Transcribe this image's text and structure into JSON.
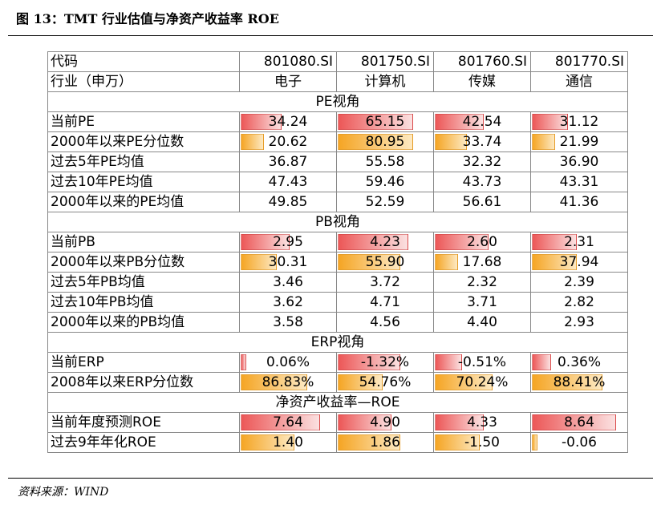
{
  "title": "图 13：TMT 行业估值与净资产收益率 ROE",
  "source": "资料来源：WIND",
  "table": {
    "code_label": "代码",
    "industry_label": "行业（申万）",
    "codes": [
      "801080.SI",
      "801750.SI",
      "801760.SI",
      "801770.SI"
    ],
    "industries": [
      "电子",
      "计算机",
      "传媒",
      "通信"
    ],
    "sections": [
      {
        "title": "PE视角",
        "rows": [
          {
            "label": "当前PE",
            "values": [
              "34.24",
              "65.15",
              "42.54",
              "31.12"
            ],
            "bar": "red",
            "fill": [
              0.45,
              0.85,
              0.55,
              0.4
            ]
          },
          {
            "label": "2000年以来PE分位数",
            "values": [
              "20.62",
              "80.95",
              "33.74",
              "21.99"
            ],
            "bar": "orange",
            "fill": [
              0.25,
              0.85,
              0.35,
              0.25
            ]
          },
          {
            "label": "过去5年PE均值",
            "values": [
              "36.87",
              "55.58",
              "32.32",
              "36.90"
            ]
          },
          {
            "label": "过去10年PE均值",
            "values": [
              "47.43",
              "59.46",
              "43.73",
              "43.31"
            ]
          },
          {
            "label": "2000年以来的PE均值",
            "values": [
              "49.85",
              "52.59",
              "56.61",
              "41.36"
            ]
          }
        ]
      },
      {
        "title": "PB视角",
        "rows": [
          {
            "label": "当前PB",
            "values": [
              "2.95",
              "4.23",
              "2.60",
              "2.31"
            ],
            "bar": "red",
            "fill": [
              0.55,
              0.8,
              0.6,
              0.5
            ]
          },
          {
            "label": "2000年以来PB分位数",
            "values": [
              "30.31",
              "55.90",
              "17.68",
              "37.94"
            ],
            "bar": "orange",
            "fill": [
              0.4,
              0.7,
              0.25,
              0.5
            ]
          },
          {
            "label": "过去5年PB均值",
            "values": [
              "3.46",
              "3.72",
              "2.32",
              "2.39"
            ]
          },
          {
            "label": "过去10年PB均值",
            "values": [
              "3.62",
              "4.71",
              "3.71",
              "2.82"
            ]
          },
          {
            "label": "2000年以来的PB均值",
            "values": [
              "3.58",
              "4.56",
              "4.40",
              "2.93"
            ]
          }
        ]
      },
      {
        "title": "ERP视角",
        "rows": [
          {
            "label": "当前ERP",
            "values": [
              "0.06%",
              "-1.32%",
              "-0.51%",
              "0.36%"
            ],
            "bar": "red",
            "fill": [
              0.05,
              0.7,
              0.3,
              0.2
            ]
          },
          {
            "label": "2008年以来ERP分位数",
            "values": [
              "86.83%",
              "54.76%",
              "70.24%",
              "88.41%"
            ],
            "bar": "orange",
            "fill": [
              0.75,
              0.5,
              0.65,
              0.8
            ]
          }
        ]
      },
      {
        "title": "净资产收益率—ROE",
        "rows": [
          {
            "label": "当前年度预测ROE",
            "values": [
              "7.64",
              "4.90",
              "4.33",
              "8.64"
            ],
            "bar": "red",
            "fill": [
              0.9,
              0.6,
              0.55,
              0.95
            ]
          },
          {
            "label": "过去9年年化ROE",
            "values": [
              "1.40",
              "1.86",
              "-1.50",
              "-0.06"
            ],
            "bar": "orange",
            "fill": [
              0.6,
              0.7,
              0.5,
              0.05
            ]
          }
        ]
      }
    ]
  }
}
